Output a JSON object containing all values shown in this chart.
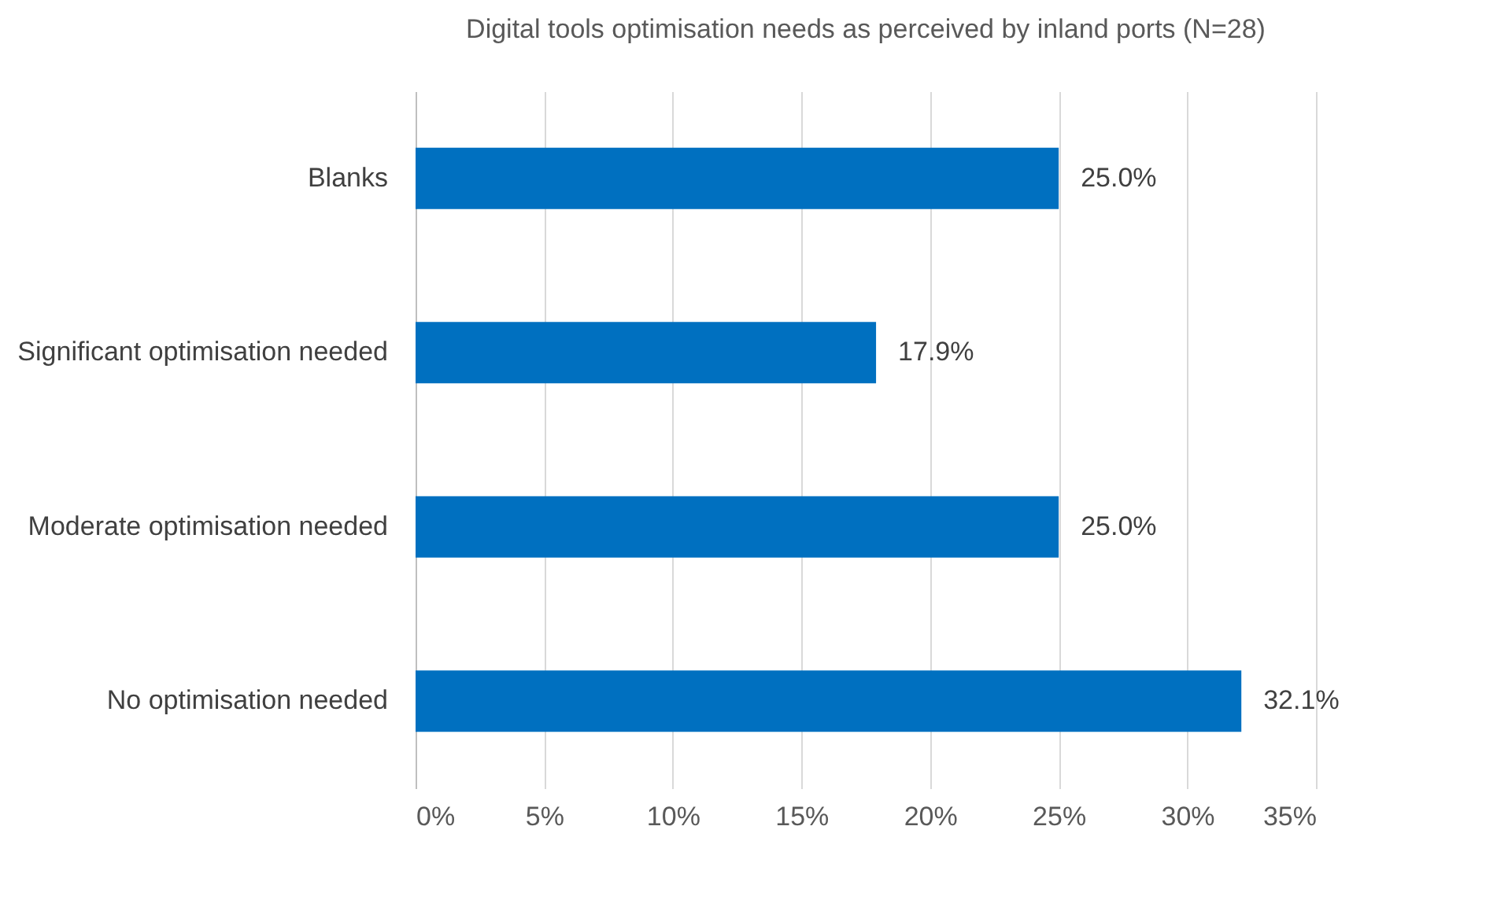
{
  "chart_data": {
    "type": "bar",
    "orientation": "horizontal",
    "title": "Digital tools optimisation needs as perceived by inland ports (N=28)",
    "categories": [
      "Blanks",
      "Significant optimisation needed",
      "Moderate optimisation needed",
      "No optimisation needed"
    ],
    "values": [
      25.0,
      17.9,
      25.0,
      32.1
    ],
    "value_labels": [
      "25.0%",
      "17.9%",
      "25.0%",
      "32.1%"
    ],
    "color": "#0070c0",
    "xlim": [
      0,
      35
    ],
    "xticks": [
      {
        "value": 0,
        "label": "0%"
      },
      {
        "value": 5,
        "label": "5%"
      },
      {
        "value": 10,
        "label": "10%"
      },
      {
        "value": 15,
        "label": "15%"
      },
      {
        "value": 20,
        "label": "20%"
      },
      {
        "value": 25,
        "label": "25%"
      },
      {
        "value": 30,
        "label": "30%"
      },
      {
        "value": 35,
        "label": "35%"
      }
    ],
    "grid": "x"
  }
}
